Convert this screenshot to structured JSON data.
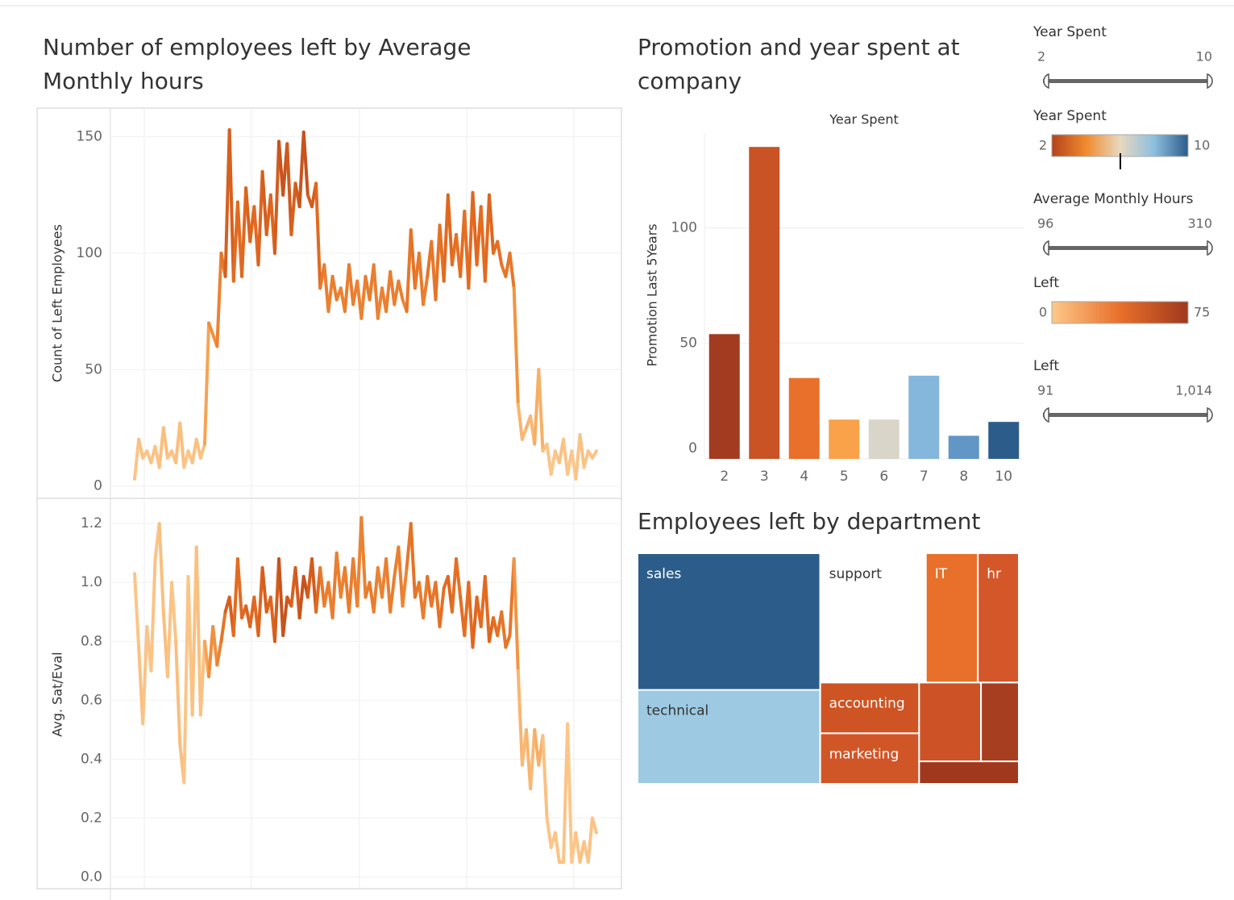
{
  "chart_data": [
    {
      "type": "line",
      "title": "Number of employees left by Average Monthly hours",
      "ylabel": "Count of Left Employees",
      "values": [
        3,
        20,
        12,
        15,
        10,
        17,
        8,
        25,
        12,
        15,
        10,
        27,
        8,
        15,
        10,
        20,
        12,
        18,
        70,
        65,
        60,
        100,
        90,
        153,
        88,
        122,
        90,
        128,
        105,
        120,
        95,
        135,
        108,
        125,
        100,
        148,
        125,
        147,
        108,
        130,
        120,
        152,
        125,
        120,
        130,
        85,
        95,
        75,
        90,
        80,
        85,
        75,
        95,
        78,
        88,
        72,
        90,
        80,
        95,
        72,
        85,
        75,
        92,
        78,
        88,
        80,
        75,
        110,
        85,
        100,
        78,
        90,
        105,
        80,
        112,
        88,
        125,
        95,
        108,
        90,
        118,
        85,
        126,
        95,
        120,
        88,
        125,
        100,
        105,
        95,
        90,
        100,
        85,
        35,
        20,
        25,
        30,
        18,
        50,
        15,
        18,
        5,
        15,
        10,
        20,
        5,
        15,
        3,
        22,
        8,
        15,
        12,
        15
      ],
      "ylim": [
        -5,
        162
      ],
      "yticks": [
        0,
        50,
        100,
        150
      ],
      "grid": true,
      "colors": [
        "#fdd09a",
        "#f39a45",
        "#e2691f",
        "#b0401c"
      ]
    },
    {
      "type": "line",
      "ylabel": "Avg. Sat/Eval",
      "values": [
        1.03,
        0.78,
        0.52,
        0.85,
        0.7,
        1.08,
        1.2,
        0.9,
        0.68,
        1.0,
        0.8,
        0.45,
        0.32,
        1.02,
        0.55,
        1.12,
        0.55,
        0.8,
        0.68,
        0.85,
        0.72,
        0.8,
        0.9,
        0.95,
        0.82,
        1.08,
        0.88,
        0.92,
        0.85,
        0.95,
        0.82,
        1.05,
        0.9,
        0.95,
        0.8,
        1.08,
        0.82,
        0.95,
        0.92,
        1.05,
        0.88,
        1.02,
        0.95,
        1.08,
        0.9,
        1.05,
        0.92,
        1.0,
        0.88,
        1.1,
        0.95,
        1.05,
        0.9,
        1.08,
        0.92,
        1.22,
        0.95,
        1.0,
        0.9,
        1.05,
        0.95,
        1.08,
        0.9,
        1.02,
        1.12,
        0.92,
        1.05,
        1.2,
        0.95,
        1.0,
        0.88,
        1.02,
        0.92,
        1.0,
        0.85,
        0.98,
        1.02,
        0.9,
        1.08,
        0.95,
        0.82,
        1.0,
        0.78,
        0.95,
        0.85,
        1.02,
        0.8,
        0.88,
        0.82,
        0.9,
        0.78,
        0.82,
        1.08,
        0.7,
        0.38,
        0.5,
        0.3,
        0.5,
        0.38,
        0.48,
        0.2,
        0.1,
        0.15,
        0.05,
        0.05,
        0.52,
        0.05,
        0.15,
        0.05,
        0.12,
        0.05,
        0.2,
        0.15
      ],
      "ylim": [
        -0.04,
        1.28
      ],
      "yticks": [
        {
          "value": 0,
          "label": "0.0"
        },
        {
          "value": 0.2,
          "label": "0.2"
        },
        {
          "value": 0.4,
          "label": "0.4"
        },
        {
          "value": 0.6,
          "label": "0.6"
        },
        {
          "value": 0.8,
          "label": "0.8"
        },
        {
          "value": 1,
          "label": "1.0"
        },
        {
          "value": 1.2,
          "label": "1.2"
        }
      ],
      "grid": true,
      "colors": [
        "#fdd09a",
        "#f39a45",
        "#e2691f",
        "#b0401c"
      ]
    },
    {
      "type": "bar",
      "title": "Promotion and year spent at company",
      "xlabel": "Year Spent",
      "ylabel": "Promotion Last 5Years",
      "categories": [
        "2",
        "3",
        "4",
        "5",
        "6",
        "7",
        "8",
        "10"
      ],
      "values": [
        54,
        135,
        35,
        17,
        17,
        36,
        10,
        16
      ],
      "colors": [
        "#a33b20",
        "#c95325",
        "#e8702a",
        "#f9a24a",
        "#d9d5c9",
        "#85b6dc",
        "#6196c7",
        "#2c5c8a"
      ],
      "ylim": [
        0,
        141
      ],
      "yticks": [
        0,
        50,
        100
      ],
      "grid": true
    },
    {
      "type": "treemap",
      "title": "Employees left by department",
      "categories": [
        "sales",
        "support",
        "IT",
        "hr",
        "technical",
        "accounting",
        "marketing",
        null,
        null,
        null
      ],
      "values": [
        1014,
        555,
        273,
        215,
        697,
        204,
        203,
        198,
        121,
        91
      ],
      "colors": [
        "#2c5c8a",
        "#ffffff",
        "#e8702a",
        "#d4572a",
        "#9dc9e2",
        "#cf5424",
        "#d15627",
        "#cd5226",
        "#a83e20",
        "#a0381e"
      ]
    }
  ],
  "filters": [
    {
      "kind": "slider",
      "title": "Year Spent",
      "min": "2",
      "max": "10"
    },
    {
      "kind": "legend",
      "title": "Year Spent",
      "min": "2",
      "max": "10",
      "colors": [
        "#b5421c",
        "#f08a2e",
        "#e8d8bf",
        "#8dbfe0",
        "#2c5c8a"
      ]
    },
    {
      "kind": "slider",
      "title": "Average Monthly Hours",
      "min": "96",
      "max": "310"
    },
    {
      "kind": "legend",
      "title": "Left",
      "min": "0",
      "max": "75",
      "colors": [
        "#fdc88a",
        "#e8702a",
        "#a0381e"
      ]
    },
    {
      "kind": "slider",
      "title": "Left",
      "min": "91",
      "max": "1,014"
    }
  ]
}
